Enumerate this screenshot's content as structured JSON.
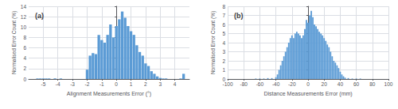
{
  "chart_data": [
    {
      "type": "bar",
      "title": "(a)",
      "xlabel": "Alignment Measurements Error (°)",
      "ylabel": "Normalised Error Count (%)",
      "x": [
        -5.4,
        -5.2,
        -5.0,
        -4.8,
        -4.6,
        -4.2,
        -3.8,
        -2.0,
        -1.8,
        -1.6,
        -1.4,
        -1.2,
        -1.0,
        -0.8,
        -0.6,
        -0.4,
        -0.2,
        0.0,
        0.2,
        0.4,
        0.6,
        0.8,
        1.0,
        1.2,
        1.4,
        1.6,
        1.8,
        2.0,
        2.2,
        2.4,
        2.6,
        2.8,
        3.0,
        3.2,
        3.4,
        4.4,
        4.6
      ],
      "values": [
        0.1,
        0.1,
        0.1,
        0.1,
        0.1,
        0.1,
        0.1,
        1.8,
        4.5,
        5.0,
        4.8,
        8.5,
        7.5,
        7.0,
        8.5,
        10.5,
        8.0,
        10.2,
        11.5,
        13.0,
        11.8,
        10.2,
        9.2,
        8.5,
        6.5,
        5.2,
        4.5,
        3.0,
        2.5,
        1.5,
        1.0,
        0.5,
        0.2,
        0.1,
        0.1,
        0.1,
        1.0
      ],
      "color": "#5b9bd5",
      "xlim": [
        -6,
        5
      ],
      "xticks": [
        -5,
        -4,
        -3,
        -2,
        -1,
        0,
        1,
        2,
        3,
        4
      ],
      "ylim": [
        0,
        14
      ],
      "yticks": [
        0,
        2,
        4,
        6,
        8,
        10,
        12,
        14
      ],
      "grid": true
    },
    {
      "type": "bar",
      "title": "(b)",
      "xlabel": "Distance Measurements Error (mm)",
      "ylabel": "Normalised Error Count (%)",
      "x": [
        -65,
        -60,
        -55,
        -50,
        -45,
        -40,
        -38,
        -36,
        -34,
        -32,
        -30,
        -28,
        -26,
        -24,
        -22,
        -20,
        -18,
        -16,
        -14,
        -12,
        -10,
        -8,
        -6,
        -4,
        -2,
        0,
        2,
        4,
        6,
        8,
        10,
        12,
        14,
        16,
        18,
        20,
        22,
        24,
        26,
        28,
        30,
        32,
        34,
        36,
        38,
        40,
        42,
        44,
        46,
        50,
        55,
        60,
        65
      ],
      "values": [
        0.05,
        0.05,
        0.05,
        0.1,
        0.1,
        0.2,
        0.5,
        1.0,
        1.5,
        2.0,
        2.5,
        3.0,
        3.5,
        4.0,
        4.5,
        4.8,
        4.5,
        5.0,
        5.2,
        5.0,
        4.8,
        4.5,
        4.8,
        5.5,
        6.5,
        6.2,
        7.0,
        7.5,
        6.8,
        6.0,
        5.8,
        5.5,
        5.2,
        5.0,
        4.8,
        4.5,
        4.2,
        3.8,
        3.5,
        3.0,
        2.5,
        2.0,
        1.8,
        1.5,
        1.2,
        0.8,
        0.5,
        0.3,
        0.15,
        0.1,
        0.05,
        0.05,
        0.05
      ],
      "color": "#5b9bd5",
      "xlim": [
        -100,
        100
      ],
      "xticks": [
        -100,
        -80,
        -60,
        -40,
        -20,
        0,
        20,
        40,
        60,
        80,
        100
      ],
      "ylim": [
        0,
        8
      ],
      "yticks": [
        0,
        1,
        2,
        3,
        4,
        5,
        6,
        7,
        8
      ],
      "grid": true
    }
  ]
}
